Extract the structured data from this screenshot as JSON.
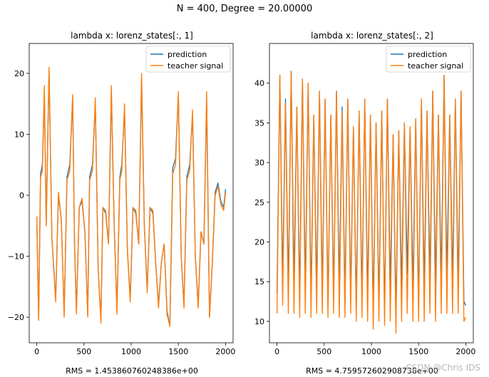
{
  "suptitle": "N = 400, Degree = 20.00000",
  "watermark": "CSDN @Chris IDS",
  "colors": {
    "prediction": "#1f77b4",
    "teacher": "#ff7f0e",
    "axis": "#000000"
  },
  "chart_data": [
    {
      "type": "line",
      "title": "lambda x: lorenz_states[:, 1]",
      "xlabel": "RMS = 1.453860760248386e+00",
      "ylabel": "",
      "xlim": [
        -80,
        2080
      ],
      "ylim": [
        -24.2,
        24.9
      ],
      "xticks": [
        0,
        500,
        1000,
        1500,
        2000
      ],
      "yticks": [
        -20,
        -10,
        0,
        10,
        20
      ],
      "legend": {
        "placement": "upper right",
        "entries": [
          "prediction",
          "teacher signal"
        ]
      },
      "series": [
        {
          "name": "prediction",
          "x": [
            0,
            20,
            40,
            60,
            80,
            100,
            130,
            160,
            200,
            230,
            260,
            290,
            320,
            350,
            380,
            400,
            420,
            450,
            480,
            510,
            540,
            560,
            590,
            620,
            650,
            680,
            700,
            730,
            760,
            790,
            820,
            850,
            880,
            900,
            930,
            960,
            990,
            1020,
            1050,
            1080,
            1110,
            1140,
            1170,
            1200,
            1230,
            1260,
            1290,
            1320,
            1350,
            1380,
            1410,
            1440,
            1470,
            1500,
            1530,
            1560,
            1590,
            1620,
            1650,
            1680,
            1710,
            1740,
            1770,
            1800,
            1830,
            1860,
            1890,
            1920,
            1950,
            1980,
            2000
          ],
          "values": [
            -3.5,
            -20.5,
            3.5,
            5,
            17,
            -5,
            20.5,
            -7,
            -17,
            0,
            -4,
            -19.5,
            3,
            5,
            16,
            -8,
            -19,
            -2,
            -1,
            -6,
            -19.5,
            3,
            5,
            15,
            -12,
            -20.5,
            -2,
            -3,
            -8,
            17,
            -5,
            -19,
            3,
            5,
            14,
            -9,
            -17,
            -2,
            -3,
            -8,
            19,
            -5,
            -15.5,
            -2,
            -3,
            -11,
            -18,
            -11,
            -8,
            -19,
            -21.5,
            4.5,
            6,
            16.5,
            -10,
            -18,
            3,
            5,
            13,
            -10,
            -18,
            -6,
            -8,
            15.5,
            -20,
            -11,
            0.5,
            2,
            -1,
            -2,
            1
          ]
        },
        {
          "name": "teacher signal",
          "x": [
            0,
            20,
            40,
            60,
            80,
            100,
            130,
            160,
            200,
            230,
            260,
            290,
            320,
            350,
            380,
            400,
            420,
            450,
            480,
            510,
            540,
            560,
            590,
            620,
            650,
            680,
            700,
            730,
            760,
            790,
            820,
            850,
            880,
            900,
            930,
            960,
            990,
            1020,
            1050,
            1080,
            1110,
            1140,
            1170,
            1200,
            1230,
            1260,
            1290,
            1320,
            1350,
            1380,
            1410,
            1440,
            1470,
            1500,
            1530,
            1560,
            1590,
            1620,
            1650,
            1680,
            1710,
            1740,
            1770,
            1800,
            1830,
            1860,
            1890,
            1920,
            1950,
            1980,
            2000
          ],
          "values": [
            -3.5,
            -20.5,
            3,
            4,
            18,
            -5,
            21,
            -7,
            -17.5,
            0.5,
            -4,
            -20,
            2.5,
            4,
            16.5,
            -8.5,
            -19.5,
            -2,
            -0.5,
            -6,
            -20,
            2.5,
            4,
            16,
            -12,
            -21,
            -2,
            -2.5,
            -8,
            18,
            -5,
            -19.5,
            2.5,
            4,
            15,
            -9,
            -17.5,
            -2,
            -2.5,
            -8,
            20,
            -5,
            -16,
            -2,
            -2.5,
            -11,
            -18.5,
            -11,
            -8,
            -19.5,
            -21.5,
            3.5,
            5,
            17,
            -10,
            -18.5,
            2.5,
            4,
            14,
            -10,
            -18.5,
            -6,
            -8,
            17,
            -20,
            -11,
            0,
            1.5,
            -1.5,
            -2.5,
            0.5
          ]
        }
      ]
    },
    {
      "type": "line",
      "title": "lambda x: lorenz_states[:, 2]",
      "xlabel": "RMS = 4.759572602908738e+00",
      "ylabel": "",
      "xlim": [
        -80,
        2080
      ],
      "ylim": [
        7.3,
        45
      ],
      "xticks": [
        0,
        500,
        1000,
        1500,
        2000
      ],
      "yticks": [
        10,
        15,
        20,
        25,
        30,
        35,
        40
      ],
      "legend": {
        "placement": "upper right",
        "entries": [
          "prediction",
          "teacher signal"
        ]
      },
      "series": [
        {
          "name": "prediction",
          "x": [
            0,
            30,
            60,
            90,
            120,
            150,
            180,
            210,
            240,
            270,
            300,
            330,
            360,
            390,
            420,
            450,
            480,
            510,
            540,
            570,
            600,
            630,
            660,
            690,
            720,
            750,
            780,
            810,
            840,
            870,
            900,
            930,
            960,
            990,
            1020,
            1050,
            1080,
            1110,
            1140,
            1170,
            1200,
            1230,
            1260,
            1290,
            1320,
            1350,
            1380,
            1410,
            1440,
            1470,
            1500,
            1530,
            1560,
            1590,
            1620,
            1650,
            1680,
            1710,
            1740,
            1770,
            1800,
            1830,
            1860,
            1890,
            1920,
            1950,
            1980,
            2000
          ],
          "values": [
            13.5,
            41,
            15,
            38,
            14,
            41.5,
            15,
            37,
            13,
            40.5,
            14,
            40,
            13,
            36,
            14,
            39,
            13.5,
            38,
            12,
            36,
            13,
            39,
            14,
            37,
            12.5,
            38,
            13,
            34.5,
            12,
            36.5,
            13,
            38,
            13,
            36,
            11.5,
            35,
            12,
            36.5,
            11,
            38,
            14,
            33.5,
            11,
            34,
            14,
            35,
            16,
            34.5,
            14,
            35.5,
            12,
            38,
            14,
            36.5,
            15,
            39,
            14.5,
            36,
            15,
            41,
            15.5,
            36,
            15,
            38,
            14.5,
            39,
            12.5,
            12
          ]
        },
        {
          "name": "teacher signal",
          "x": [
            0,
            30,
            60,
            90,
            120,
            150,
            180,
            210,
            240,
            270,
            300,
            330,
            360,
            390,
            420,
            450,
            480,
            510,
            540,
            570,
            600,
            630,
            660,
            690,
            720,
            750,
            780,
            810,
            840,
            870,
            900,
            930,
            960,
            990,
            1020,
            1050,
            1080,
            1110,
            1140,
            1170,
            1200,
            1230,
            1260,
            1290,
            1320,
            1350,
            1380,
            1410,
            1440,
            1470,
            1500,
            1530,
            1560,
            1590,
            1620,
            1650,
            1680,
            1710,
            1740,
            1770,
            1800,
            1830,
            1860,
            1890,
            1920,
            1950,
            1980,
            2000
          ],
          "values": [
            11,
            41,
            12,
            37.5,
            11,
            41.5,
            11,
            37,
            10.5,
            40.5,
            11,
            40,
            10.5,
            36,
            11,
            39,
            11,
            38,
            10.5,
            36,
            11,
            39,
            10.5,
            36.5,
            10.5,
            38,
            11,
            34.5,
            10,
            36.5,
            10.5,
            38,
            10,
            36,
            9,
            35,
            10,
            36.5,
            9.5,
            38,
            10,
            33.5,
            8.5,
            34,
            10,
            35,
            11,
            34.5,
            10,
            35.5,
            10,
            38,
            10,
            36.5,
            11,
            39,
            10,
            36,
            11,
            41,
            11,
            36,
            11,
            38,
            11,
            39,
            10,
            10.5
          ]
        }
      ]
    }
  ]
}
